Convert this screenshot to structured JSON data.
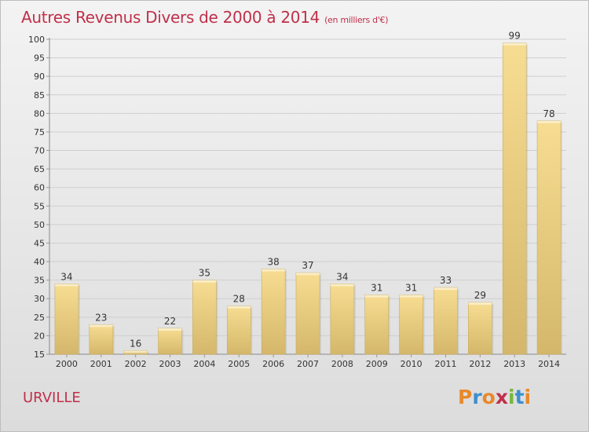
{
  "header": {
    "title": "Autres Revenus Divers de 2000 à 2014",
    "subtitle": "(en milliers d'€)"
  },
  "footer": {
    "commune": "URVILLE",
    "logo_letters": [
      "P",
      "r",
      "o",
      "x",
      "i",
      "t",
      "i"
    ],
    "logo_colors": [
      "#e8892b",
      "#3c8fd0",
      "#e8892b",
      "#c0304a",
      "#79b63d",
      "#3c8fd0",
      "#e8892b"
    ]
  },
  "chart_data": {
    "type": "bar",
    "title": "Autres Revenus Divers de 2000 à 2014",
    "subtitle": "(en milliers d'€)",
    "categories": [
      "2000",
      "2001",
      "2002",
      "2003",
      "2004",
      "2005",
      "2006",
      "2007",
      "2008",
      "2009",
      "2010",
      "2011",
      "2012",
      "2013",
      "2014"
    ],
    "values": [
      34,
      23,
      16,
      22,
      35,
      28,
      38,
      37,
      34,
      31,
      31,
      33,
      29,
      99,
      78
    ],
    "ylim": [
      15,
      100
    ],
    "yticks": [
      15,
      20,
      25,
      30,
      35,
      40,
      45,
      50,
      55,
      60,
      65,
      70,
      75,
      80,
      85,
      90,
      95,
      100
    ],
    "grid": true,
    "data_labels": true,
    "bar_color": "#e9cf86",
    "bar_color_dark": "#c8ab5c",
    "grid_color": "#cfcfcf"
  }
}
